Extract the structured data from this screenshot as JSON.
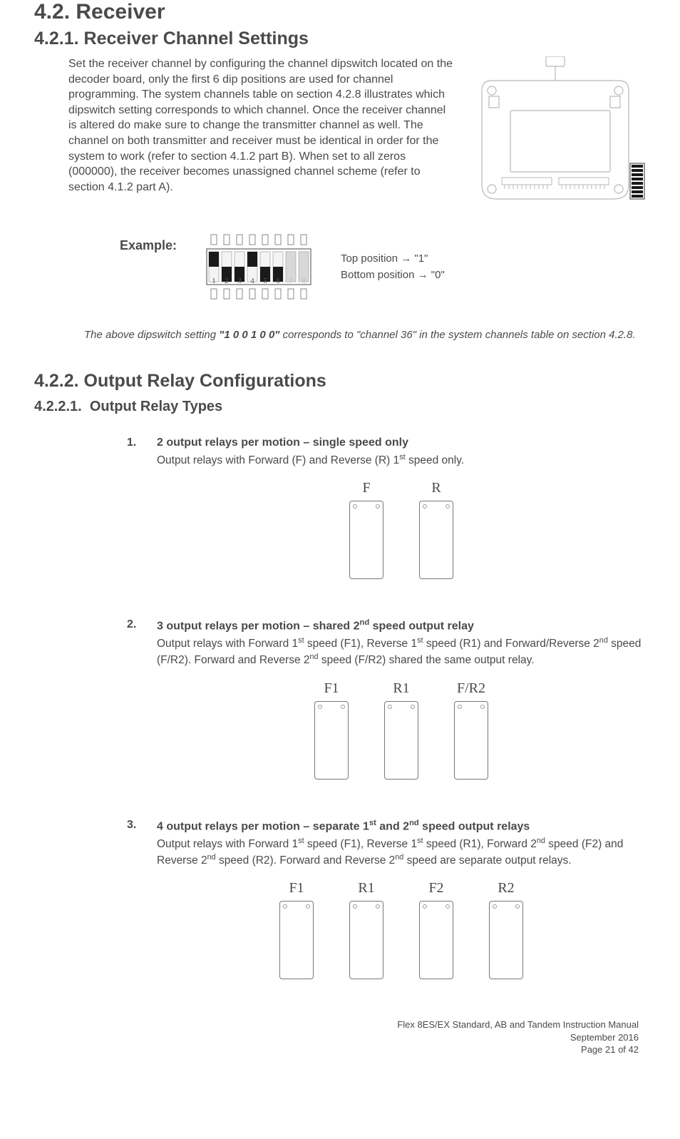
{
  "colors": {
    "text": "#4a4a4a",
    "background": "#ffffff",
    "border": "#777777",
    "dip_inactive": "#d8d8d8",
    "dip_active_black": "#1a1a1a",
    "board_line": "#b8b8b8"
  },
  "section_4_2": {
    "number": "4.2.",
    "title": "Receiver"
  },
  "section_4_2_1": {
    "number": "4.2.1.",
    "title": "Receiver Channel Settings",
    "body": "Set the receiver channel by configuring the channel dipswitch located on the decoder board, only the first 6 dip positions are used for channel programming.  The system channels table on section 4.2.8 illustrates which dipswitch setting corresponds to which channel.  Once the receiver channel is altered do make sure to change the transmitter channel as well.  The channel on both transmitter and receiver must be identical in order for the system to work (refer to section 4.1.2 part B).  When set to all zeros (000000), the receiver becomes unassigned channel scheme (refer to section 4.1.2 part A)."
  },
  "example": {
    "label": "Example:",
    "dipswitch": {
      "positions": [
        1,
        0,
        0,
        1,
        0,
        0
      ],
      "inactive_positions": [
        7,
        8
      ],
      "labels": [
        "1",
        "2",
        "3",
        "4",
        "5",
        "6",
        "7",
        "8"
      ]
    },
    "legend_top": "Top position → \"1\"",
    "legend_bottom": "Bottom position → \"0\"",
    "caption_prefix": "The above dipswitch setting ",
    "caption_code": "\"1 0 0 1 0 0\"",
    "caption_suffix": " corresponds to \"channel 36\" in the system channels table on section 4.2.8."
  },
  "section_4_2_2": {
    "number": "4.2.2.",
    "title": "Output Relay Configurations"
  },
  "section_4_2_2_1": {
    "number": "4.2.2.1.",
    "title": "Output Relay Types"
  },
  "relay_types": [
    {
      "num": "1.",
      "title_html": "2 output relays per motion – single speed only",
      "desc_html": "Output relays with Forward (F) and Reverse (R) 1<sup>st</sup> speed only.",
      "labels": [
        "F",
        "R"
      ]
    },
    {
      "num": "2.",
      "title_html": "3 output relays per motion – shared 2<sup>nd</sup> speed output relay",
      "desc_html": "Output relays with Forward 1<sup>st</sup> speed (F1), Reverse 1<sup>st</sup> speed (R1) and Forward/Reverse 2<sup>nd</sup> speed (F/R2).  Forward and Reverse 2<sup>nd</sup> speed (F/R2) shared the same output relay.",
      "labels": [
        "F1",
        "R1",
        "F/R2"
      ]
    },
    {
      "num": "3.",
      "title_html": "4 output relays per motion – separate 1<sup>st</sup> and 2<sup>nd</sup> speed output relays",
      "desc_html": "Output relays with Forward 1<sup>st</sup> speed (F1), Reverse 1<sup>st</sup> speed (R1), Forward 2<sup>nd</sup> speed (F2) and Reverse 2<sup>nd</sup> speed (R2).  Forward and Reverse 2<sup>nd</sup> speed are separate output relays.",
      "labels": [
        "F1",
        "R1",
        "F2",
        "R2"
      ]
    }
  ],
  "footer": {
    "line1": "Flex 8ES/EX Standard, AB and Tandem Instruction Manual",
    "line2": "September 2016",
    "line3": "Page 21 of 42"
  }
}
